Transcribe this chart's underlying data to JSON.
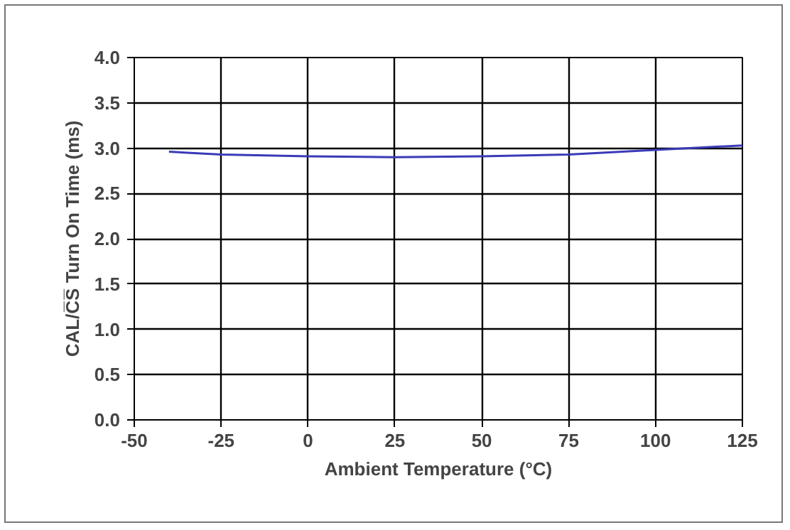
{
  "chart_data": {
    "type": "line",
    "xlabel": "Ambient Temperature (°C)",
    "ylabel": "CAL/C̅S̅ Turn On Time (ms)",
    "x": [
      -40,
      -25,
      0,
      25,
      50,
      75,
      100,
      125
    ],
    "series": [
      {
        "color": "#3a3ab8",
        "values": [
          2.96,
          2.93,
          2.91,
          2.9,
          2.91,
          2.93,
          2.98,
          3.03
        ]
      }
    ],
    "xlim": [
      -50,
      125
    ],
    "xticks": [
      -50,
      -25,
      0,
      25,
      50,
      75,
      100,
      125
    ],
    "ylim": [
      0,
      4
    ],
    "yticks": [
      {
        "value": 0,
        "label": "0.0"
      },
      {
        "value": 0.5,
        "label": "0.5"
      },
      {
        "value": 1,
        "label": "1.0"
      },
      {
        "value": 1.5,
        "label": "1.5"
      },
      {
        "value": 2,
        "label": "2.0"
      },
      {
        "value": 2.5,
        "label": "2.5"
      },
      {
        "value": 3,
        "label": "3.0"
      },
      {
        "value": 3.5,
        "label": "3.5"
      },
      {
        "value": 4,
        "label": "4.0"
      }
    ],
    "grid": true,
    "marker": "none",
    "line_style": "solid"
  }
}
